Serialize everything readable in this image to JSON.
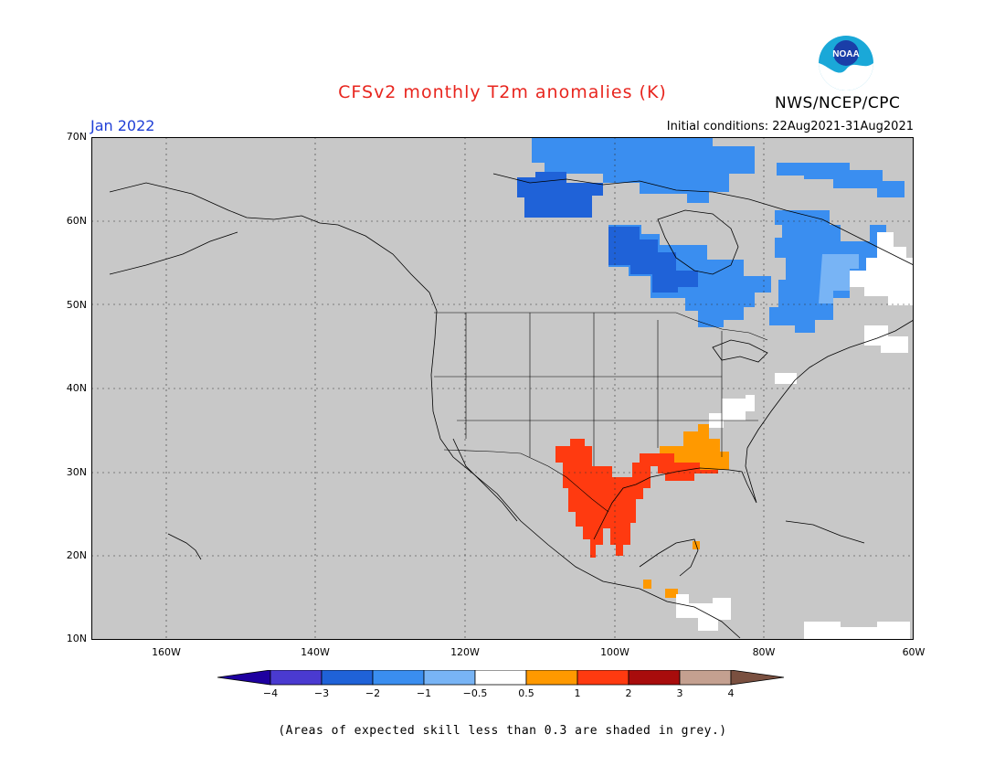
{
  "header": {
    "title": "CFSv2 monthly T2m anomalies (K)",
    "agency": "NWS/NCEP/CPC",
    "logo_text": "NOAA"
  },
  "map": {
    "valid_month": "Jan 2022",
    "initial_conditions": "Initial conditions: 22Aug2021-31Aug2021",
    "lat_labels": [
      "70N",
      "60N",
      "50N",
      "40N",
      "30N",
      "20N",
      "10N"
    ],
    "lon_labels": [
      "160W",
      "140W",
      "120W",
      "100W",
      "80W",
      "60W"
    ],
    "extent": {
      "lon_min": -170,
      "lon_max": -60,
      "lat_min": 10,
      "lat_max": 70
    },
    "background_color": "#c8c8c8",
    "regions": [
      {
        "name": "northern-canada-cool",
        "category": "-2 to -1"
      },
      {
        "name": "nw-canada-cold",
        "category": "-3 to -2"
      },
      {
        "name": "hudson-bay-cold",
        "category": "-3 to -2"
      },
      {
        "name": "quebec-cool",
        "category": "-2 to -1"
      },
      {
        "name": "labrador-near-normal",
        "category": "-0.5 to 0.5"
      },
      {
        "name": "mexico-texas-warm",
        "category": "1 to 2"
      },
      {
        "name": "southeast-us-warm",
        "category": "0.5 to 1"
      },
      {
        "name": "ohio-valley-near-normal",
        "category": "-0.5 to 0.5"
      }
    ]
  },
  "colorbar": {
    "labels": [
      "−4",
      "−3",
      "−2",
      "−1",
      "−0.5",
      "0.5",
      "1",
      "2",
      "3",
      "4"
    ],
    "colors": [
      "#1e00a0",
      "#4a3ad0",
      "#1f62d8",
      "#3a8ef0",
      "#78b4f5",
      "#ffffff",
      "#ff9900",
      "#ff3a10",
      "#a80c0c",
      "#c4a090",
      "#7a5040"
    ]
  },
  "footnote": "(Areas of expected skill less than 0.3 are shaded in grey.)"
}
